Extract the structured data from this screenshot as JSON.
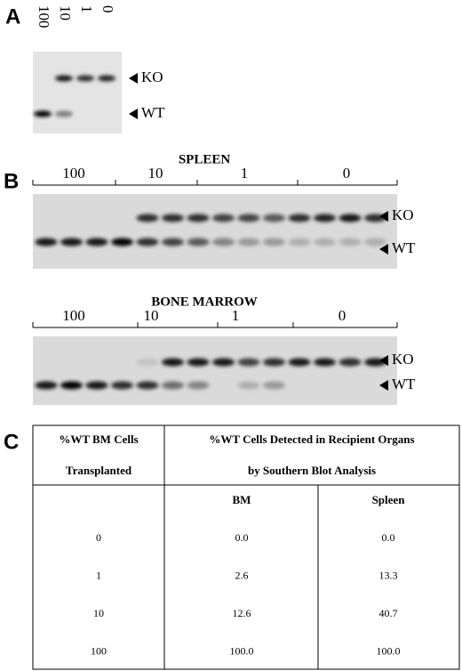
{
  "panel_a": {
    "label": "A",
    "lanes": [
      "100",
      "10",
      "1",
      "0"
    ],
    "bands": [
      "KO",
      "WT"
    ]
  },
  "panel_b": {
    "label": "B",
    "gels": [
      {
        "title": "SPLEEN",
        "groups": [
          "100",
          "10",
          "1",
          "0"
        ],
        "bands": [
          "KO",
          "WT"
        ]
      },
      {
        "title": "BONE MARROW",
        "groups": [
          "100",
          "10",
          "1",
          "0"
        ],
        "bands": [
          "KO",
          "WT"
        ]
      }
    ]
  },
  "panel_c": {
    "label": "C",
    "table": {
      "header": [
        [
          "%WT BM Cells",
          "Transplanted"
        ],
        [
          "%WT Cells Detected in Recipient Organs",
          "by Southern Blot Analysis"
        ]
      ],
      "subheader": [
        "BM",
        "Spleen"
      ],
      "rows": [
        [
          "0",
          "0.0",
          "0.0"
        ],
        [
          "1",
          "2.6",
          "13.3"
        ],
        [
          "10",
          "12.6",
          "40.7"
        ],
        [
          "100",
          "100.0",
          "100.0"
        ]
      ]
    }
  }
}
